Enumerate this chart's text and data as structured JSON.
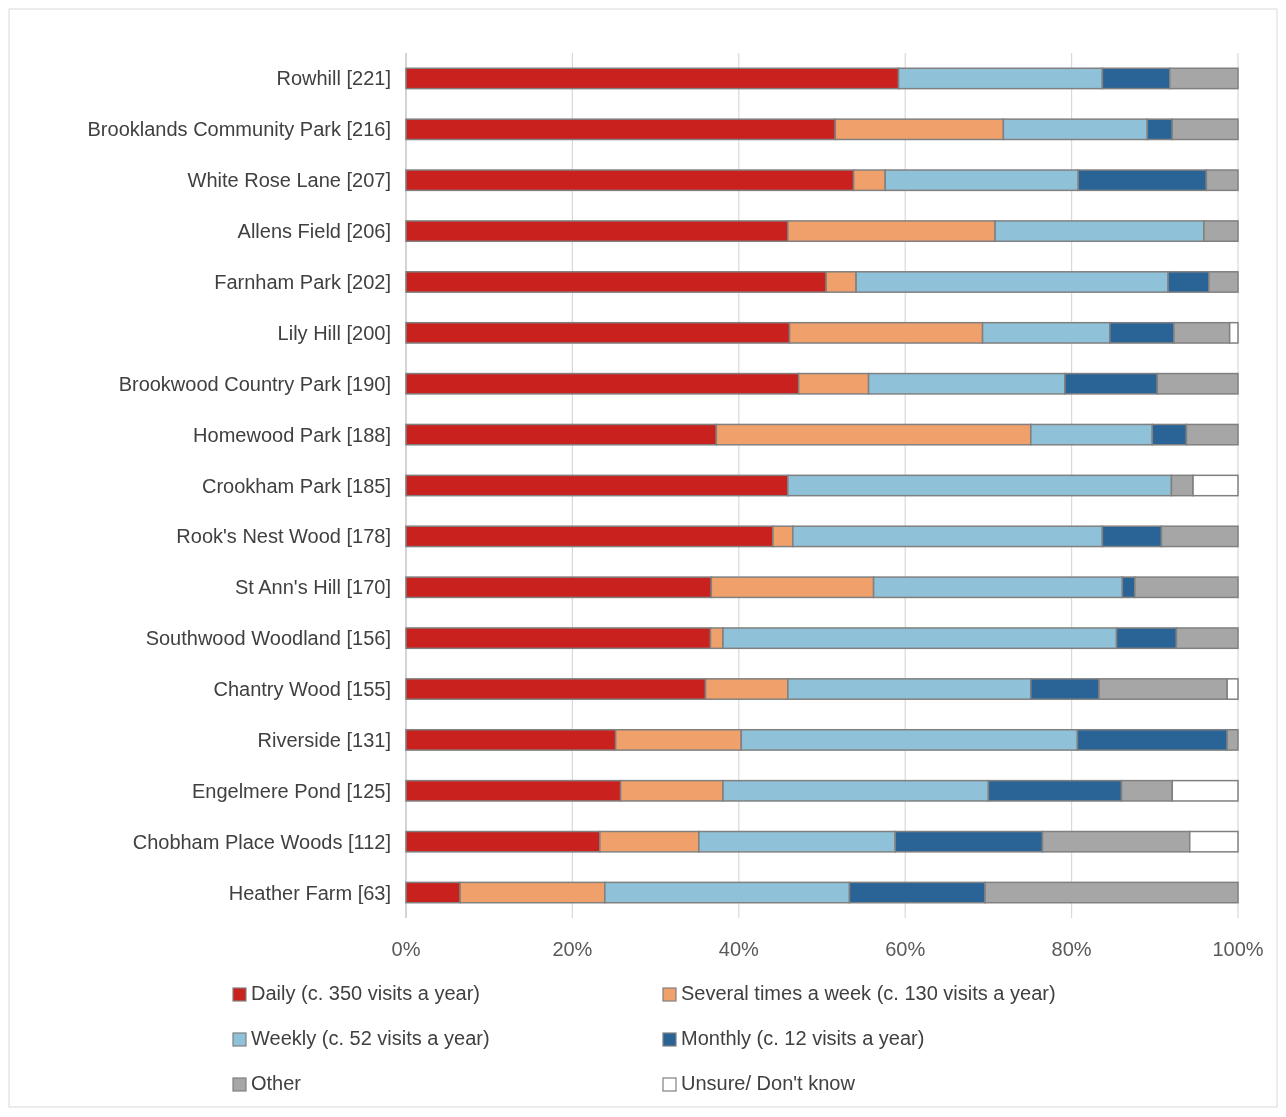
{
  "chart_data": {
    "type": "bar",
    "orientation": "horizontal",
    "stacked": true,
    "categories": [
      "Rowhill [221]",
      "Brooklands Community Park [216]",
      "White Rose Lane [207]",
      "Allens Field [206]",
      "Farnham Park [202]",
      "Lily Hill [200]",
      "Brookwood Country Park [190]",
      "Homewood Park [188]",
      "Crookham Park [185]",
      "Rook's Nest Wood [178]",
      "St Ann's Hill [170]",
      "Southwood Woodland [156]",
      "Chantry Wood [155]",
      "Riverside [131]",
      "Engelmere Pond [125]",
      "Chobham Place Woods [112]",
      "Heather Farm [63]"
    ],
    "series": [
      {
        "name": "Daily (c. 350 visits a year)",
        "color": "#c9211e",
        "values": [
          59.2,
          51.6,
          53.8,
          45.9,
          50.5,
          46.1,
          47.2,
          37.3,
          45.9,
          44.1,
          36.7,
          36.6,
          36.0,
          25.2,
          25.8,
          23.3,
          6.5
        ]
      },
      {
        "name": "Several times a week (c. 130 visits a year)",
        "color": "#f0a06a",
        "values": [
          0,
          20.2,
          3.8,
          24.9,
          3.6,
          23.2,
          8.4,
          37.8,
          0,
          2.4,
          19.5,
          1.5,
          9.9,
          15.1,
          12.3,
          11.9,
          17.4
        ]
      },
      {
        "name": "Weekly (c. 52 visits a year)",
        "color": "#8fc1d8",
        "values": [
          24.5,
          17.3,
          23.2,
          25.1,
          37.5,
          15.3,
          23.6,
          14.6,
          46.1,
          37.2,
          29.9,
          47.3,
          29.2,
          40.4,
          31.9,
          23.6,
          29.4
        ]
      },
      {
        "name": "Monthly (c. 12 visits a year)",
        "color": "#2a6496",
        "values": [
          8.1,
          3.0,
          15.4,
          0,
          4.9,
          7.7,
          11.1,
          4.1,
          0,
          7.1,
          1.5,
          7.2,
          8.2,
          18.0,
          16.0,
          17.7,
          16.3
        ]
      },
      {
        "name": "Other",
        "color": "#a6a6a6",
        "values": [
          8.2,
          7.9,
          3.8,
          4.1,
          3.5,
          6.7,
          9.7,
          6.2,
          2.6,
          9.2,
          12.4,
          7.4,
          15.4,
          1.3,
          6.1,
          17.7,
          30.4
        ]
      },
      {
        "name": "Unsure/ Don't know",
        "color": "#ffffff",
        "values": [
          0,
          0,
          0,
          0,
          0,
          1.0,
          0,
          0,
          5.4,
          0,
          0,
          0,
          1.3,
          0,
          7.9,
          5.8,
          0
        ]
      }
    ],
    "xlim": [
      0,
      100
    ],
    "xticks": [
      {
        "value": 0,
        "label": "0%"
      },
      {
        "value": 20,
        "label": "20%"
      },
      {
        "value": 40,
        "label": "40%"
      },
      {
        "value": 60,
        "label": "60%"
      },
      {
        "value": 80,
        "label": "80%"
      },
      {
        "value": 100,
        "label": "100%"
      }
    ],
    "grid": "x",
    "legend": "bottom"
  }
}
